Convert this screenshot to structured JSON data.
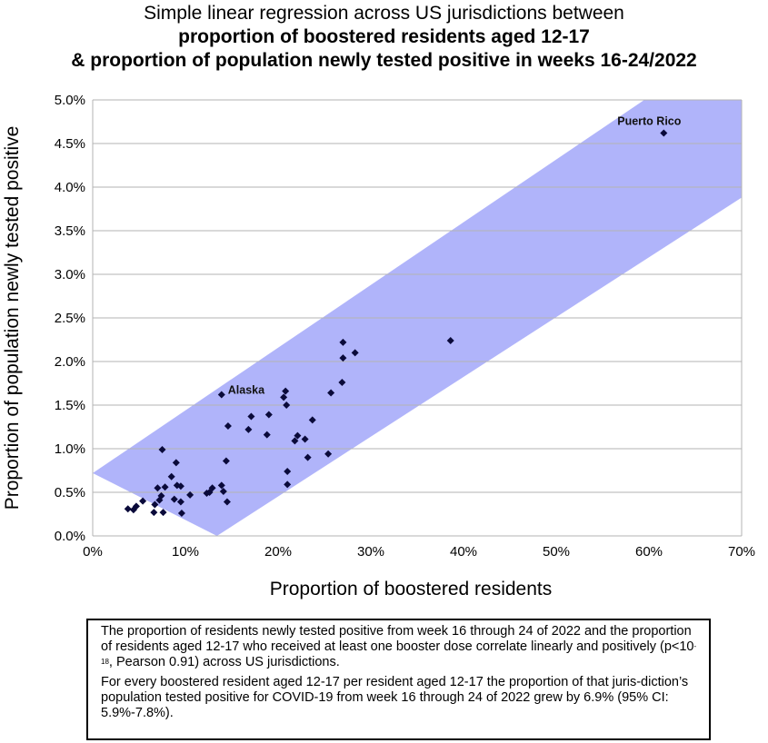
{
  "chart_data": {
    "type": "scatter",
    "title": "Simple linear regression across US jurisdictions between",
    "subtitle_line2": "proportion of boostered residents aged 12-17",
    "subtitle_line3": "& proportion of population newly tested positive in weeks 16-24/2022",
    "xlabel": "Proportion of boostered residents",
    "ylabel": "Proportion of population newly tested positive",
    "xlim": [
      0,
      70
    ],
    "ylim": [
      0,
      5.0
    ],
    "x_ticks": [
      "0%",
      "10%",
      "20%",
      "30%",
      "40%",
      "50%",
      "60%",
      "70%"
    ],
    "y_ticks": [
      "0.0%",
      "0.5%",
      "1.0%",
      "1.5%",
      "2.0%",
      "2.5%",
      "3.0%",
      "3.5%",
      "4.0%",
      "4.5%",
      "5.0%"
    ],
    "x_tick_values": [
      0,
      10,
      20,
      30,
      40,
      50,
      60,
      70
    ],
    "y_tick_values": [
      0,
      0.5,
      1.0,
      1.5,
      2.0,
      2.5,
      3.0,
      3.5,
      4.0,
      4.5,
      5.0
    ],
    "grid": "horizontal",
    "confidence_band": {
      "color": "#b0b4fa",
      "upper": [
        [
          0,
          0.72
        ],
        [
          59.5,
          5.0
        ],
        [
          70,
          5.0
        ]
      ],
      "lower": [
        [
          70,
          3.88
        ],
        [
          13.4,
          0
        ]
      ]
    },
    "point_color": "#0a0a3a",
    "series": [
      {
        "name": "US jurisdictions",
        "points": [
          [
            3.8,
            0.31
          ],
          [
            4.4,
            0.3
          ],
          [
            4.7,
            0.34
          ],
          [
            5.4,
            0.4
          ],
          [
            6.6,
            0.27
          ],
          [
            6.7,
            0.36
          ],
          [
            7.0,
            0.55
          ],
          [
            7.2,
            0.41
          ],
          [
            7.4,
            0.46
          ],
          [
            7.5,
            0.99
          ],
          [
            7.6,
            0.27
          ],
          [
            7.8,
            0.56
          ],
          [
            8.5,
            0.68
          ],
          [
            8.8,
            0.42
          ],
          [
            9.0,
            0.84
          ],
          [
            9.1,
            0.58
          ],
          [
            9.5,
            0.57
          ],
          [
            9.5,
            0.39
          ],
          [
            9.6,
            0.26
          ],
          [
            10.5,
            0.47
          ],
          [
            12.3,
            0.49
          ],
          [
            12.6,
            0.5
          ],
          [
            12.9,
            0.55
          ],
          [
            13.9,
            0.58
          ],
          [
            14.1,
            0.51
          ],
          [
            14.5,
            0.39
          ],
          [
            14.4,
            0.86
          ],
          [
            14.6,
            1.26
          ],
          [
            13.9,
            1.62
          ],
          [
            16.8,
            1.22
          ],
          [
            17.1,
            1.37
          ],
          [
            18.8,
            1.16
          ],
          [
            19.0,
            1.39
          ],
          [
            20.6,
            1.59
          ],
          [
            20.8,
            1.66
          ],
          [
            20.9,
            1.5
          ],
          [
            21.0,
            0.74
          ],
          [
            21.0,
            0.59
          ],
          [
            21.8,
            1.09
          ],
          [
            22.1,
            1.15
          ],
          [
            22.9,
            1.11
          ],
          [
            23.2,
            0.9
          ],
          [
            23.7,
            1.33
          ],
          [
            25.4,
            0.94
          ],
          [
            25.7,
            1.64
          ],
          [
            26.9,
            1.76
          ],
          [
            27.0,
            2.04
          ],
          [
            27.0,
            2.22
          ],
          [
            28.3,
            2.1
          ],
          [
            38.6,
            2.24
          ],
          [
            61.6,
            4.62
          ]
        ]
      }
    ],
    "annotations": [
      {
        "label": "Alaska",
        "x": 13.9,
        "y": 1.62
      },
      {
        "label": "Puerto Rico",
        "x": 61.6,
        "y": 4.62
      }
    ]
  },
  "caption": {
    "p1_before": "The proportion of residents newly tested positive from week 16 through 24 of 2022 and the proportion of residents aged 12-17 who received at least one booster dose correlate linearly and positively (p<10",
    "p1_sup": "-18",
    "p1_after": ", Pearson 0.91) across US jurisdictions.",
    "p2": "For every boostered resident aged 12-17 per resident aged 12-17 the proportion of that juris-diction’s population tested positive for COVID-19 from week 16 through 24 of 2022 grew by 6.9% (95% CI: 5.9%-7.8%)."
  }
}
